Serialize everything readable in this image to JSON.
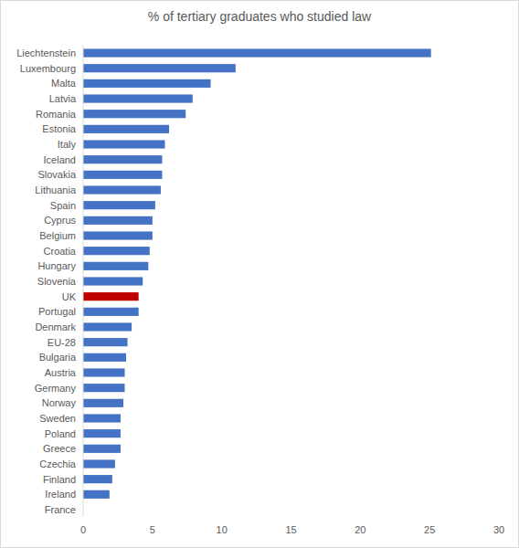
{
  "chart_data": {
    "type": "bar",
    "orientation": "horizontal",
    "title": "% of tertiary graduates who studied law",
    "categories": [
      "Liechtenstein",
      "Luxembourg",
      "Malta",
      "Latvia",
      "Romania",
      "Estonia",
      "Italy",
      "Iceland",
      "Slovakia",
      "Lithuania",
      "Spain",
      "Cyprus",
      "Belgium",
      "Croatia",
      "Hungary",
      "Slovenia",
      "UK",
      "Portugal",
      "Denmark",
      "EU-28",
      "Bulgaria",
      "Austria",
      "Germany",
      "Norway",
      "Sweden",
      "Poland",
      "Greece",
      "Czechia",
      "Finland",
      "Ireland",
      "France"
    ],
    "values": [
      25.1,
      11.0,
      9.2,
      7.9,
      7.4,
      6.2,
      5.9,
      5.7,
      5.7,
      5.6,
      5.2,
      5.0,
      5.0,
      4.8,
      4.7,
      4.3,
      4.0,
      4.0,
      3.5,
      3.2,
      3.1,
      3.0,
      3.0,
      2.9,
      2.7,
      2.7,
      2.7,
      2.3,
      2.1,
      1.9,
      0
    ],
    "colors": [
      "#4472c4",
      "#4472c4",
      "#4472c4",
      "#4472c4",
      "#4472c4",
      "#4472c4",
      "#4472c4",
      "#4472c4",
      "#4472c4",
      "#4472c4",
      "#4472c4",
      "#4472c4",
      "#4472c4",
      "#4472c4",
      "#4472c4",
      "#4472c4",
      "#c00000",
      "#4472c4",
      "#4472c4",
      "#4472c4",
      "#4472c4",
      "#4472c4",
      "#4472c4",
      "#4472c4",
      "#4472c4",
      "#4472c4",
      "#4472c4",
      "#4472c4",
      "#4472c4",
      "#4472c4",
      "#4472c4"
    ],
    "xlim": [
      0,
      30
    ],
    "xticks": [
      0,
      5,
      10,
      15,
      20,
      25,
      30
    ],
    "grid": false
  }
}
